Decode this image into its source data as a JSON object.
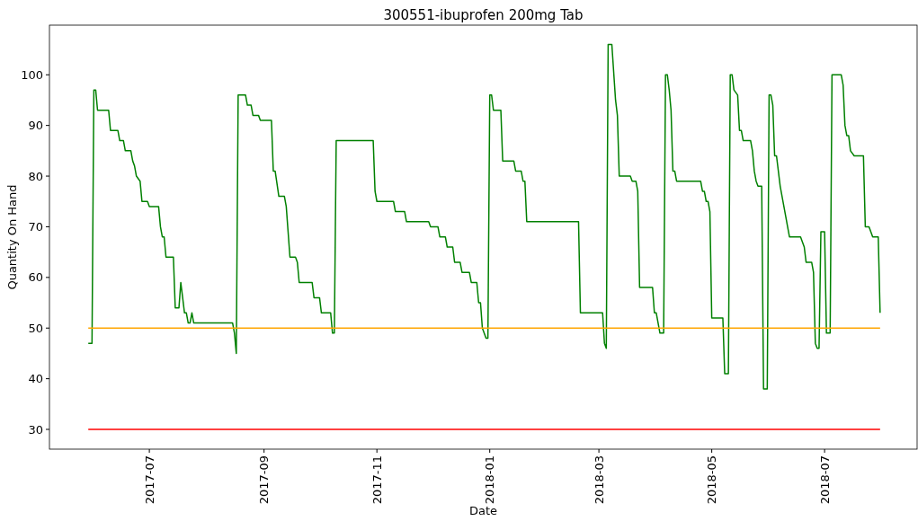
{
  "chart_data": {
    "type": "line",
    "title": "300551-ibuprofen 200mg Tab",
    "xlabel": "Date",
    "ylabel": "Quantity On Hand",
    "xlim": [
      "2017-05-08",
      "2018-08-20"
    ],
    "ylim": [
      26.1,
      109.8
    ],
    "xticks": [
      "2017-07",
      "2017-09",
      "2017-11",
      "2018-01",
      "2018-03",
      "2018-05",
      "2018-07"
    ],
    "yticks": [
      30,
      40,
      50,
      60,
      70,
      80,
      90,
      100
    ],
    "grid": false,
    "marker": "none",
    "line_style": "solid",
    "series": [
      {
        "color": "#008000",
        "x": [
          "2017-05-29",
          "2017-05-31",
          "2017-06-01",
          "2017-06-02",
          "2017-06-03",
          "2017-06-09",
          "2017-06-10",
          "2017-06-14",
          "2017-06-15",
          "2017-06-17",
          "2017-06-18",
          "2017-06-21",
          "2017-06-22",
          "2017-06-23",
          "2017-06-24",
          "2017-06-26",
          "2017-06-27",
          "2017-06-30",
          "2017-07-01",
          "2017-07-06",
          "2017-07-07",
          "2017-07-08",
          "2017-07-09",
          "2017-07-10",
          "2017-07-14",
          "2017-07-15",
          "2017-07-17",
          "2017-07-18",
          "2017-07-19",
          "2017-07-20",
          "2017-07-21",
          "2017-07-22",
          "2017-07-23",
          "2017-07-24",
          "2017-07-25",
          "2017-08-15",
          "2017-08-16",
          "2017-08-17",
          "2017-08-18",
          "2017-08-22",
          "2017-08-23",
          "2017-08-25",
          "2017-08-26",
          "2017-08-29",
          "2017-08-30",
          "2017-09-05",
          "2017-09-06",
          "2017-09-07",
          "2017-09-09",
          "2017-09-12",
          "2017-09-13",
          "2017-09-15",
          "2017-09-18",
          "2017-09-19",
          "2017-09-20",
          "2017-09-27",
          "2017-09-28",
          "2017-10-01",
          "2017-10-02",
          "2017-10-07",
          "2017-10-08",
          "2017-10-09",
          "2017-10-10",
          "2017-10-30",
          "2017-10-31",
          "2017-11-01",
          "2017-11-10",
          "2017-11-11",
          "2017-11-16",
          "2017-11-17",
          "2017-11-29",
          "2017-11-30",
          "2017-12-04",
          "2017-12-05",
          "2017-12-08",
          "2017-12-09",
          "2017-12-12",
          "2017-12-13",
          "2017-12-16",
          "2017-12-17",
          "2017-12-21",
          "2017-12-22",
          "2017-12-25",
          "2017-12-26",
          "2017-12-27",
          "2017-12-28",
          "2017-12-30",
          "2017-12-31",
          "2018-01-01",
          "2018-01-02",
          "2018-01-03",
          "2018-01-07",
          "2018-01-08",
          "2018-01-14",
          "2018-01-15",
          "2018-01-18",
          "2018-01-19",
          "2018-01-20",
          "2018-01-21",
          "2018-02-18",
          "2018-02-19",
          "2018-03-03",
          "2018-03-04",
          "2018-03-05",
          "2018-03-06",
          "2018-03-08",
          "2018-03-10",
          "2018-03-11",
          "2018-03-12",
          "2018-03-18",
          "2018-03-19",
          "2018-03-21",
          "2018-03-22",
          "2018-03-23",
          "2018-03-30",
          "2018-03-31",
          "2018-04-01",
          "2018-04-03",
          "2018-04-05",
          "2018-04-06",
          "2018-04-07",
          "2018-04-08",
          "2018-04-09",
          "2018-04-10",
          "2018-04-11",
          "2018-04-12",
          "2018-04-25",
          "2018-04-26",
          "2018-04-27",
          "2018-04-28",
          "2018-04-29",
          "2018-04-30",
          "2018-05-01",
          "2018-05-07",
          "2018-05-08",
          "2018-05-10",
          "2018-05-11",
          "2018-05-12",
          "2018-05-13",
          "2018-05-15",
          "2018-05-16",
          "2018-05-17",
          "2018-05-18",
          "2018-05-22",
          "2018-05-23",
          "2018-05-24",
          "2018-05-25",
          "2018-05-26",
          "2018-05-28",
          "2018-05-29",
          "2018-05-31",
          "2018-06-01",
          "2018-06-02",
          "2018-06-03",
          "2018-06-04",
          "2018-06-05",
          "2018-06-07",
          "2018-06-09",
          "2018-06-10",
          "2018-06-12",
          "2018-06-18",
          "2018-06-20",
          "2018-06-21",
          "2018-06-24",
          "2018-06-25",
          "2018-06-26",
          "2018-06-27",
          "2018-06-28",
          "2018-06-29",
          "2018-07-01",
          "2018-07-02",
          "2018-07-04",
          "2018-07-05",
          "2018-07-10",
          "2018-07-11",
          "2018-07-12",
          "2018-07-13",
          "2018-07-14",
          "2018-07-15",
          "2018-07-17",
          "2018-07-22",
          "2018-07-23",
          "2018-07-25",
          "2018-07-27",
          "2018-07-30",
          "2018-07-31"
        ],
        "values": [
          47,
          47,
          97,
          97,
          93,
          93,
          89,
          89,
          87,
          87,
          85,
          85,
          83,
          82,
          80,
          79,
          75,
          75,
          74,
          74,
          70,
          68,
          68,
          64,
          64,
          54,
          54,
          59,
          56,
          53,
          53,
          51,
          51,
          53,
          51,
          51,
          49,
          45,
          96,
          96,
          94,
          94,
          92,
          92,
          91,
          91,
          81,
          81,
          76,
          76,
          74,
          64,
          64,
          63,
          59,
          59,
          56,
          56,
          53,
          53,
          49,
          49,
          87,
          87,
          77,
          75,
          75,
          73,
          73,
          71,
          71,
          70,
          70,
          68,
          68,
          66,
          66,
          63,
          63,
          61,
          61,
          59,
          59,
          55,
          55,
          50,
          48,
          48,
          96,
          96,
          93,
          93,
          83,
          83,
          81,
          81,
          79,
          79,
          71,
          71,
          53,
          53,
          47,
          46,
          106,
          106,
          95,
          92,
          80,
          80,
          79,
          79,
          77,
          58,
          58,
          53,
          53,
          49,
          49,
          100,
          100,
          97,
          93,
          81,
          81,
          79,
          79,
          77,
          77,
          75,
          75,
          73,
          52,
          52,
          41,
          41,
          100,
          100,
          97,
          96,
          89,
          89,
          87,
          87,
          85,
          81,
          79,
          78,
          78,
          38,
          38,
          96,
          96,
          94,
          84,
          84,
          78,
          74,
          72,
          68,
          68,
          66,
          63,
          63,
          61,
          47,
          46,
          46,
          69,
          69,
          49,
          49,
          100,
          100,
          98,
          90,
          88,
          88,
          85,
          84,
          84,
          70,
          70,
          68,
          68,
          53
        ]
      },
      {
        "color": "#ffa500",
        "x": [
          "2017-05-29",
          "2018-07-31"
        ],
        "values": [
          50,
          50
        ]
      },
      {
        "color": "#ff0000",
        "x": [
          "2017-05-29",
          "2018-07-31"
        ],
        "values": [
          30,
          30
        ]
      }
    ]
  }
}
